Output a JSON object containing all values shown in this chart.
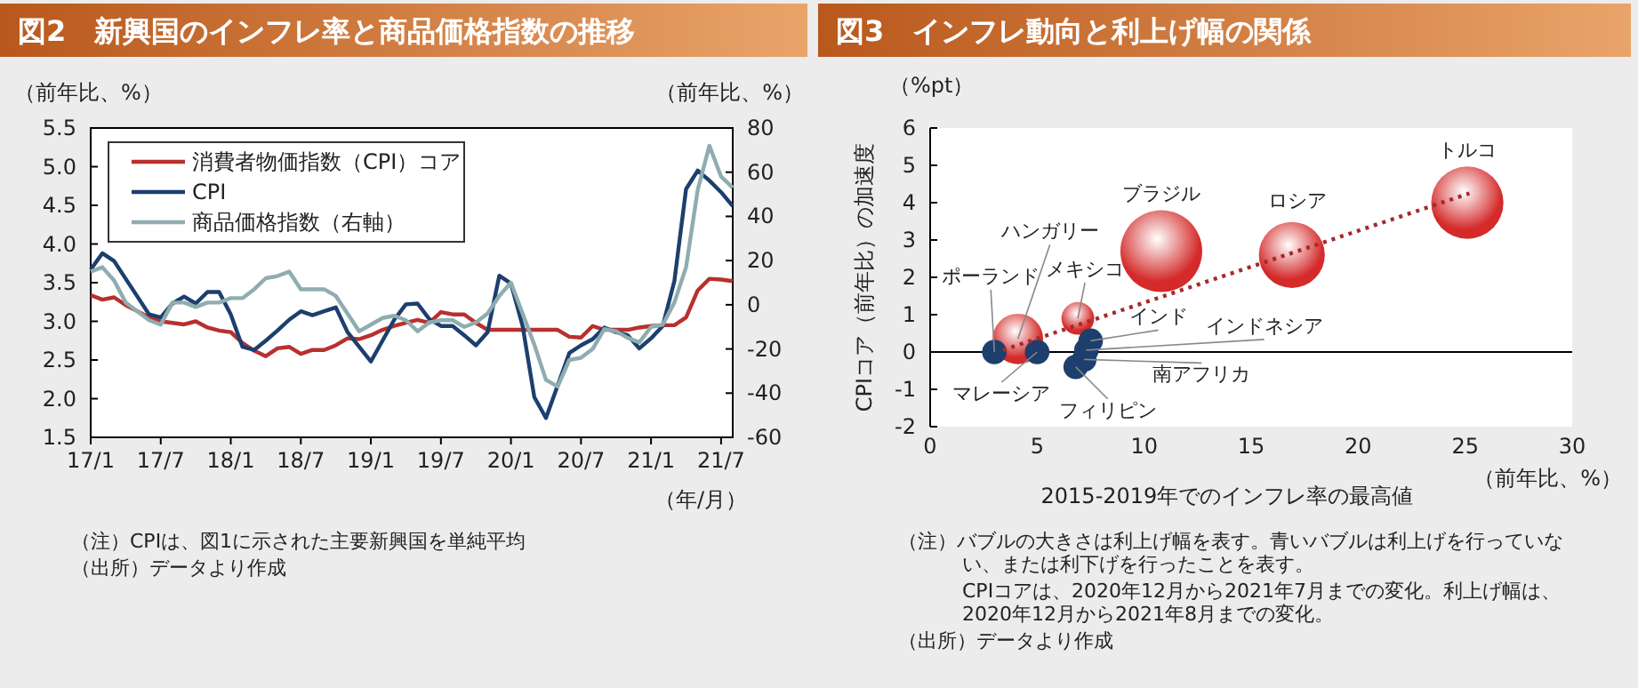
{
  "chart_data": [
    {
      "type": "line",
      "title": "図2　新興国のインフレ率と商品価格指数の推移",
      "ylabel": "（前年比、%）",
      "y2label": "（前年比、%）",
      "xlabel": "（年/月）",
      "categories": [
        "17/1",
        null,
        null,
        null,
        null,
        null,
        "17/7",
        null,
        null,
        null,
        null,
        null,
        "18/1",
        null,
        null,
        null,
        null,
        null,
        "18/7",
        null,
        null,
        null,
        null,
        null,
        "19/1",
        null,
        null,
        null,
        null,
        null,
        "19/7",
        null,
        null,
        null,
        null,
        null,
        "20/1",
        null,
        null,
        null,
        null,
        null,
        "20/7",
        null,
        null,
        null,
        null,
        null,
        "21/1",
        null,
        null,
        null,
        null,
        null,
        "21/7",
        null
      ],
      "series": [
        {
          "name": "消費者物価指数（CPI）コア",
          "color": "#b8302e",
          "values": [
            3.34,
            3.28,
            3.31,
            3.21,
            3.13,
            3.05,
            3.0,
            2.98,
            2.96,
            3.0,
            2.92,
            2.88,
            2.86,
            2.72,
            2.62,
            2.55,
            2.65,
            2.67,
            2.58,
            2.63,
            2.63,
            2.69,
            2.78,
            2.77,
            2.82,
            2.89,
            2.94,
            2.98,
            3.02,
            2.98,
            3.12,
            3.09,
            3.09,
            2.98,
            2.89,
            2.89,
            2.89,
            2.89,
            2.89,
            2.89,
            2.89,
            2.8,
            2.79,
            2.94,
            2.89,
            2.89,
            2.89,
            2.92,
            2.94,
            2.95,
            2.95,
            3.05,
            3.4,
            3.55,
            3.54,
            3.52
          ]
        },
        {
          "name": "CPI",
          "color": "#1c3f6e",
          "values": [
            3.67,
            3.88,
            3.78,
            3.55,
            3.32,
            3.09,
            3.05,
            3.23,
            3.32,
            3.23,
            3.38,
            3.38,
            3.09,
            2.67,
            2.63,
            2.75,
            2.88,
            3.02,
            3.13,
            3.08,
            3.13,
            3.18,
            2.86,
            2.67,
            2.48,
            2.75,
            3.02,
            3.22,
            3.23,
            3.03,
            2.94,
            2.94,
            2.82,
            2.69,
            2.86,
            3.59,
            3.49,
            2.94,
            2.02,
            1.75,
            2.17,
            2.59,
            2.69,
            2.77,
            2.92,
            2.86,
            2.82,
            2.65,
            2.78,
            2.94,
            3.52,
            4.71,
            4.95,
            4.82,
            4.67,
            4.49
          ]
        },
        {
          "name": "商品価格指数（右軸）",
          "color": "#8fadb0",
          "axis": "y2",
          "values": [
            15,
            17,
            11,
            1,
            -3,
            -7,
            -9,
            1,
            1,
            -1,
            1,
            1,
            3,
            3,
            7,
            12,
            13,
            15,
            7,
            7,
            7,
            4,
            -4,
            -12,
            -9,
            -6,
            -5,
            -7,
            -12,
            -8,
            -7,
            -7,
            -10,
            -8,
            -4,
            4,
            10,
            -4,
            -18,
            -34,
            -37,
            -25,
            -24,
            -20,
            -11,
            -12,
            -15,
            -17,
            -10,
            -9,
            1,
            17,
            52,
            72,
            58,
            53
          ]
        }
      ],
      "ylim": [
        1.5,
        5.5
      ],
      "yticks": [
        1.5,
        {
          "value": 2,
          "label": "2.0"
        },
        2.5,
        {
          "value": 3,
          "label": "3.0"
        },
        3.5,
        {
          "value": 4,
          "label": "4.0"
        },
        4.5,
        {
          "value": 5,
          "label": "5.0"
        },
        5.5
      ],
      "y2lim": [
        -60,
        80
      ],
      "y2ticks": [
        -60,
        -40,
        -20,
        0,
        20,
        40,
        60,
        80
      ],
      "legend": "top left",
      "marker": "none",
      "line_style": "solid",
      "annotations": [
        "（注）CPIは、図1に示された主要新興国を単純平均",
        "（出所）データより作成"
      ]
    },
    {
      "type": "bubble",
      "title": "図3　インフレ動向と利上げ幅の関係",
      "xlabel": "2015-2019年でのインフレ率の最高値",
      "ylabel": "CPIコア（前年比）の加速度",
      "series": [
        {
          "x": [
            25.1,
            10.8,
            16.9,
            4.1,
            6.9,
            3.0,
            5.0,
            7.5,
            7.3,
            7.2,
            6.8
          ],
          "values": [
            4.0,
            2.7,
            2.6,
            0.35,
            0.9,
            0,
            0,
            0.3,
            0.05,
            -0.2,
            -0.4
          ],
          "sizes": [
            0.78,
            1,
            0.65,
            0.38,
            0.16,
            0.09,
            0.09,
            0.09,
            0.09,
            0.09,
            0.09
          ],
          "colors": [
            "#d42a2a",
            "#d42a2a",
            "#d42a2a",
            "#d42a2a",
            "#d42a2a",
            "#1c3f6e",
            "#1c3f6e",
            "#1c3f6e",
            "#1c3f6e",
            "#1c3f6e",
            "#1c3f6e"
          ]
        },
        {
          "type": "line",
          "x": [
            3.4,
            25.2
          ],
          "values": [
            0.05,
            4.25
          ],
          "color": "#a52a2a",
          "line_style": "dotted"
        }
      ],
      "xlim": [
        0,
        30
      ],
      "xticks": [
        0,
        5,
        10,
        15,
        20,
        25,
        30
      ],
      "ylim": [
        -2,
        6
      ],
      "yticks": [
        -2,
        -1,
        0,
        1,
        2,
        3,
        4,
        5,
        6
      ],
      "annotations": [
        {
          "text": "トルコ",
          "x": 25.1,
          "y": 4.0
        },
        {
          "text": "ブラジル",
          "x": 10.8,
          "y": 2.7
        },
        {
          "text": "ロシア",
          "x": 16.9,
          "y": 2.6
        },
        {
          "text": "ハンガリー",
          "x": 4.1,
          "y": 0.35
        },
        {
          "text": "メキシコ",
          "x": 6.9,
          "y": 0.9
        },
        {
          "text": "ポーランド",
          "x": 3.0,
          "y": 0
        },
        {
          "text": "マレーシア",
          "x": 5.0,
          "y": 0
        },
        {
          "text": "インド",
          "x": 7.5,
          "y": 0.3
        },
        {
          "text": "インドネシア",
          "x": 7.3,
          "y": 0.05
        },
        {
          "text": "南アフリカ",
          "x": 7.2,
          "y": -0.2
        },
        {
          "text": "フィリピン",
          "x": 6.8,
          "y": -0.4
        },
        "（%pt）",
        "（前年比、%）",
        "（注）バブルの大きさは利上げ幅を表す。青いバブルは利上げを行っていない、または利下げを行ったことを表す。",
        "CPIコアは、2020年12月から2021年7月までの変化。利上げ幅は、2020年12月から2021年8月までの変化。",
        "（出所）データより作成"
      ]
    }
  ]
}
